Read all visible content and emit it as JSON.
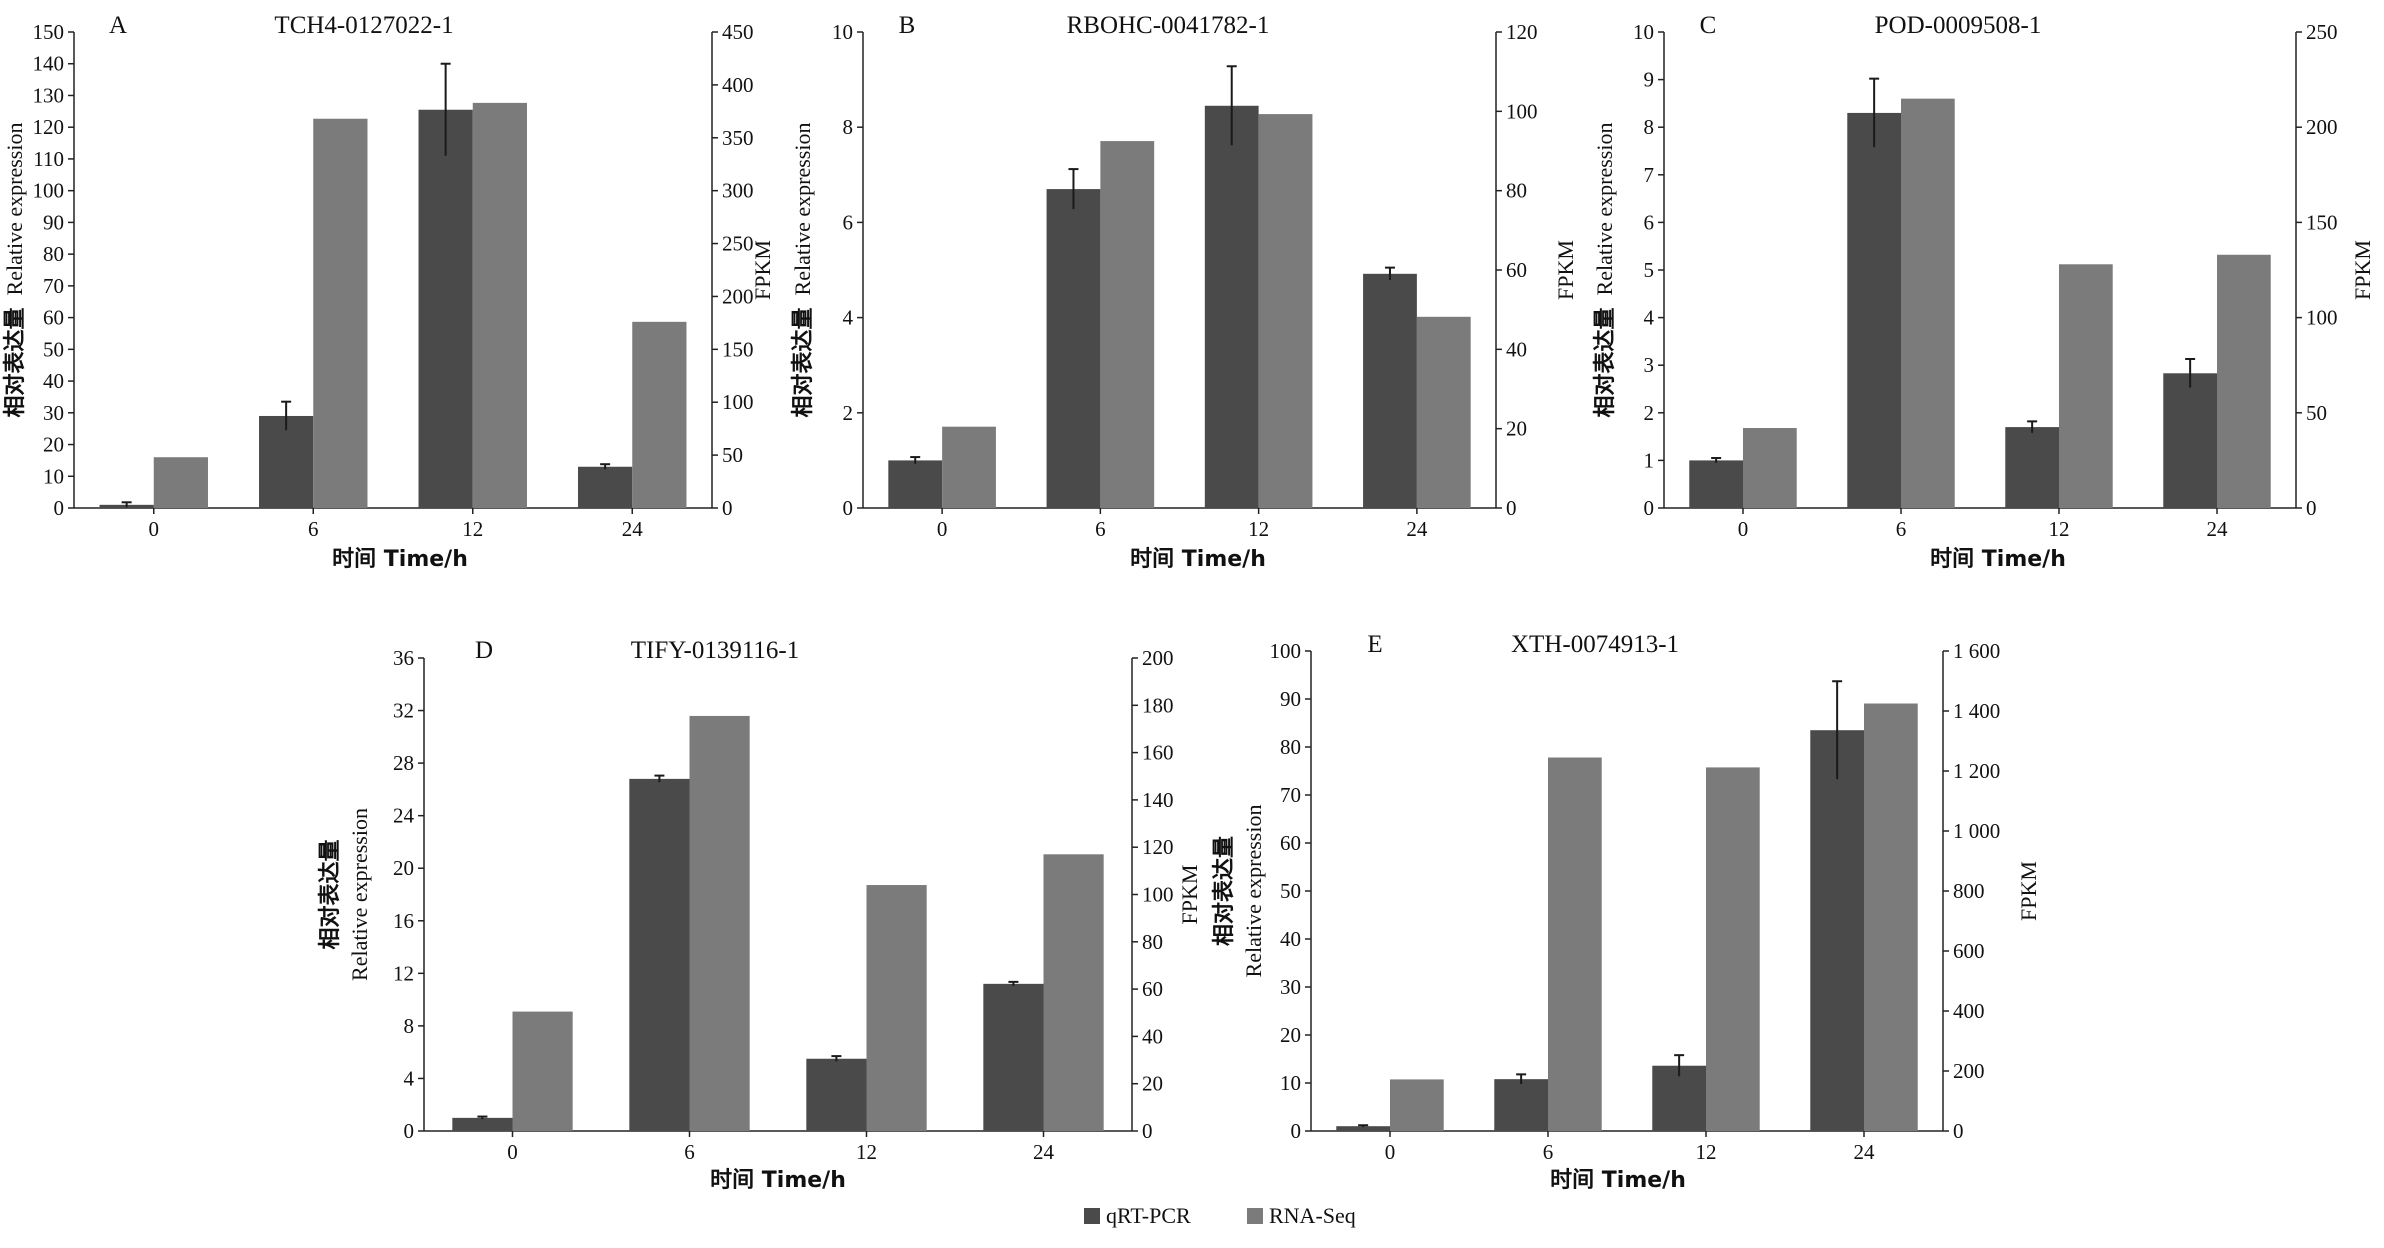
{
  "colors": {
    "qrt": "#4a4a4a",
    "rna": "#7b7b7b",
    "axis": "#222222"
  },
  "legend": [
    {
      "label": "qRT-PCR",
      "color": "#4a4a4a"
    },
    {
      "label": "RNA-Seq",
      "color": "#7b7b7b"
    }
  ],
  "chart_data": [
    {
      "type": "bar",
      "panel": "A",
      "title": "TCH4-0127022-1",
      "categories": [
        "0",
        "6",
        "12",
        "24"
      ],
      "xlabel": "时间  Time/h",
      "ylabel_cn": "相对表达量",
      "ylabel_en": "Relative expression",
      "y2label": "FPKM",
      "ylim": [
        0,
        150
      ],
      "yticks": [
        "0",
        "10",
        "20",
        "30",
        "40",
        "50",
        "60",
        "70",
        "80",
        "90",
        "100",
        "110",
        "120",
        "130",
        "140",
        "150"
      ],
      "y2lim": [
        0,
        450
      ],
      "y2ticks": [
        "0",
        "50",
        "100",
        "150",
        "200",
        "250",
        "300",
        "350",
        "400",
        "450"
      ],
      "series": [
        {
          "name": "qRT-PCR",
          "axis": "left",
          "values": [
            1,
            29,
            125.5,
            13
          ],
          "errors": [
            0.8,
            4.5,
            14.5,
            0.8
          ]
        },
        {
          "name": "RNA-Seq",
          "axis": "right",
          "values": [
            48,
            368,
            383,
            176
          ]
        }
      ]
    },
    {
      "type": "bar",
      "panel": "B",
      "title": "RBOHC-0041782-1",
      "categories": [
        "0",
        "6",
        "12",
        "24"
      ],
      "xlabel": "时间  Time/h",
      "ylabel_cn": "相对表达量",
      "ylabel_en": "Relative expression",
      "y2label": "FPKM",
      "ylim": [
        0,
        10
      ],
      "yticks": [
        "0",
        "2",
        "4",
        "6",
        "8",
        "10"
      ],
      "y2lim": [
        0,
        120
      ],
      "y2ticks": [
        "0",
        "20",
        "40",
        "60",
        "80",
        "100",
        "120"
      ],
      "series": [
        {
          "name": "qRT-PCR",
          "axis": "left",
          "values": [
            1.0,
            6.7,
            8.45,
            4.92
          ],
          "errors": [
            0.07,
            0.42,
            0.83,
            0.13
          ]
        },
        {
          "name": "RNA-Seq",
          "axis": "right",
          "values": [
            20.5,
            92.5,
            99.3,
            48.2
          ]
        }
      ]
    },
    {
      "type": "bar",
      "panel": "C",
      "title": "POD-0009508-1",
      "categories": [
        "0",
        "6",
        "12",
        "24"
      ],
      "xlabel": "时间  Time/h",
      "ylabel_cn": "相对表达量",
      "ylabel_en": "Relative expression",
      "y2label": "FPKM",
      "ylim": [
        0,
        10
      ],
      "yticks": [
        "0",
        "1",
        "2",
        "3",
        "4",
        "5",
        "6",
        "7",
        "8",
        "9",
        "10"
      ],
      "y2lim": [
        0,
        250
      ],
      "y2ticks": [
        "0",
        "50",
        "100",
        "150",
        "200",
        "250"
      ],
      "series": [
        {
          "name": "qRT-PCR",
          "axis": "left",
          "values": [
            1.0,
            8.3,
            1.7,
            2.83
          ],
          "errors": [
            0.05,
            0.72,
            0.12,
            0.3
          ]
        },
        {
          "name": "RNA-Seq",
          "axis": "right",
          "values": [
            42,
            215,
            128,
            133
          ]
        }
      ]
    },
    {
      "type": "bar",
      "panel": "D",
      "title": "TIFY-0139116-1",
      "categories": [
        "0",
        "6",
        "12",
        "24"
      ],
      "xlabel": "时间  Time/h",
      "ylabel_cn": "相对表达量",
      "ylabel_en": "Relative expression",
      "y2label": "FPKM",
      "ylim": [
        0,
        36
      ],
      "yticks": [
        "0",
        "4",
        "8",
        "12",
        "16",
        "20",
        "24",
        "28",
        "32",
        "36"
      ],
      "y2lim": [
        0,
        200
      ],
      "y2ticks": [
        "0",
        "20",
        "40",
        "60",
        "80",
        "100",
        "120",
        "140",
        "160",
        "180",
        "200"
      ],
      "series": [
        {
          "name": "qRT-PCR",
          "axis": "left",
          "values": [
            1.0,
            26.8,
            5.5,
            11.2
          ],
          "errors": [
            0.1,
            0.25,
            0.2,
            0.15
          ]
        },
        {
          "name": "RNA-Seq",
          "axis": "right",
          "values": [
            50.5,
            175.5,
            104,
            117
          ]
        }
      ]
    },
    {
      "type": "bar",
      "panel": "E",
      "title": "XTH-0074913-1",
      "categories": [
        "0",
        "6",
        "12",
        "24"
      ],
      "xlabel": "时间  Time/h",
      "ylabel_cn": "相对表达量",
      "ylabel_en": "Relative expression",
      "y2label": "FPKM",
      "ylim": [
        0,
        100
      ],
      "yticks": [
        "0",
        "10",
        "20",
        "30",
        "40",
        "50",
        "60",
        "70",
        "80",
        "90",
        "100"
      ],
      "y2lim": [
        0,
        1600
      ],
      "y2ticks": [
        "0",
        "200",
        "400",
        "600",
        "800",
        "1 000",
        "1 200",
        "1 400",
        "1 600"
      ],
      "series": [
        {
          "name": "qRT-PCR",
          "axis": "left",
          "values": [
            1.0,
            10.8,
            13.6,
            83.5
          ],
          "errors": [
            0.2,
            1.0,
            2.2,
            10.2
          ]
        },
        {
          "name": "RNA-Seq",
          "axis": "right",
          "values": [
            172,
            1245,
            1212,
            1425
          ]
        }
      ]
    }
  ]
}
